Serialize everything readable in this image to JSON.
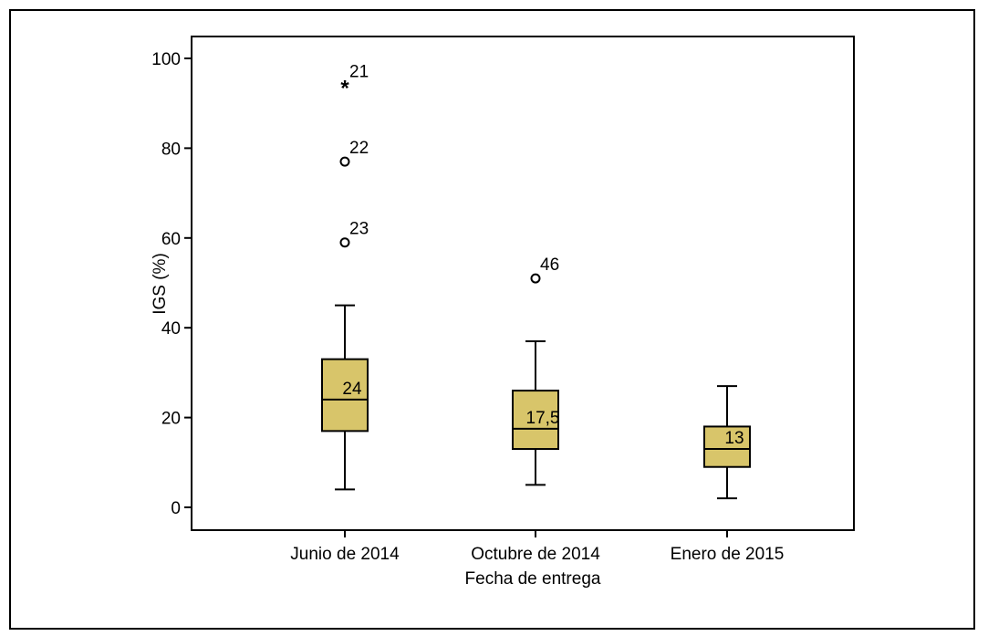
{
  "chart_data": {
    "type": "boxplot",
    "xlabel": "Fecha de entrega",
    "ylabel": "IGS (%)",
    "ylim": [
      -5,
      105
    ],
    "yticks": [
      0,
      20,
      40,
      60,
      80,
      100
    ],
    "box_color": "#d8c56a",
    "categories": [
      "Junio de 2014",
      "Octubre de 2014",
      "Enero de 2015"
    ],
    "boxes": [
      {
        "category": "Junio de 2014",
        "whisker_low": 4,
        "q1": 17,
        "median": 24,
        "q3": 33,
        "whisker_high": 45,
        "median_label": "24",
        "outliers": [
          {
            "value": 94,
            "label": "21",
            "kind": "extreme"
          },
          {
            "value": 77,
            "label": "22",
            "kind": "outlier"
          },
          {
            "value": 59,
            "label": "23",
            "kind": "outlier"
          }
        ]
      },
      {
        "category": "Octubre de 2014",
        "whisker_low": 5,
        "q1": 13,
        "median": 17.5,
        "q3": 26,
        "whisker_high": 37,
        "median_label": "17,5",
        "outliers": [
          {
            "value": 51,
            "label": "46",
            "kind": "outlier"
          }
        ]
      },
      {
        "category": "Enero de 2015",
        "whisker_low": 2,
        "q1": 9,
        "median": 13,
        "q3": 18,
        "whisker_high": 27,
        "median_label": "13",
        "outliers": []
      }
    ]
  }
}
